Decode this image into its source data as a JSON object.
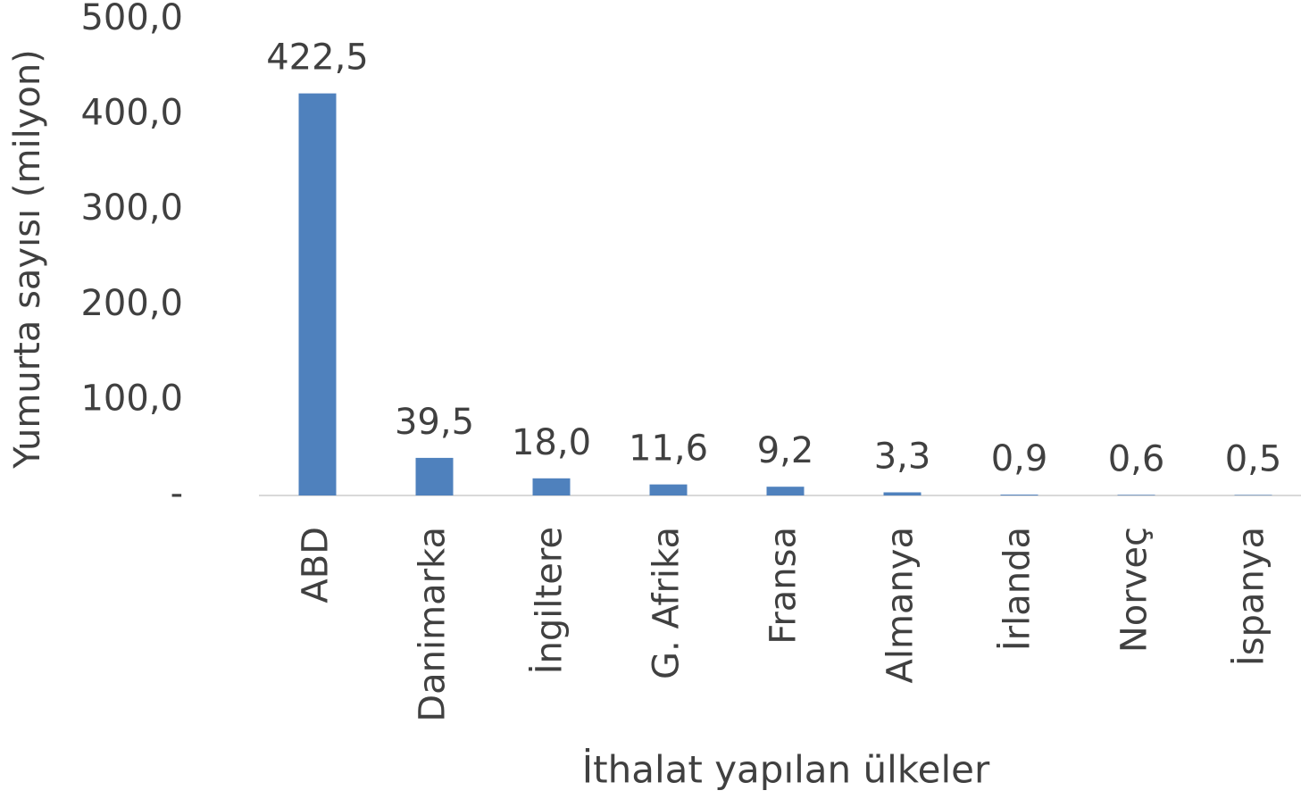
{
  "chart_data": {
    "type": "bar",
    "x_label": "İthalat yapılan ülkeler",
    "y_label": "Yumurta sayısı (milyon)",
    "categories": [
      "ABD",
      "Danimarka",
      "İngiltere",
      "G. Afrika",
      "Fransa",
      "Almanya",
      "İrlanda",
      "Norveç",
      "İspanya"
    ],
    "values": [
      422.5,
      39.5,
      18.0,
      11.6,
      9.2,
      3.3,
      0.9,
      0.6,
      0.5
    ],
    "value_labels": [
      "422,5",
      "39,5",
      "18,0",
      "11,6",
      "9,2",
      "3,3",
      "0,9",
      "0,6",
      "0,5"
    ],
    "color": "#4f81bd",
    "ylim": [
      0,
      500
    ],
    "yticks": [
      {
        "value": 0,
        "label": "-"
      },
      {
        "value": 100,
        "label": "100,0"
      },
      {
        "value": 200,
        "label": "200,0"
      },
      {
        "value": 300,
        "label": "300,0"
      },
      {
        "value": 400,
        "label": "400,0"
      },
      {
        "value": 500,
        "label": "500,0"
      }
    ],
    "grid": false
  }
}
